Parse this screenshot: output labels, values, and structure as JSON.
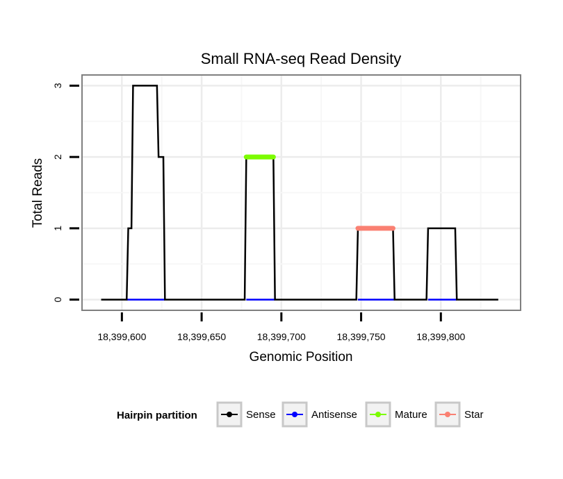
{
  "chart_data": {
    "type": "line",
    "title": "Small RNA-seq Read Density",
    "xlabel": "Genomic Position",
    "ylabel": "Total Reads",
    "xlim": [
      18399575,
      18399850
    ],
    "ylim": [
      -0.15,
      3.15
    ],
    "x_ticks": [
      18399600,
      18399650,
      18399700,
      18399750,
      18399800
    ],
    "x_tick_labels": [
      "18,399,600",
      "18,399,650",
      "18,399,700",
      "18,399,750",
      "18,399,800"
    ],
    "y_ticks": [
      0,
      1,
      2,
      3
    ],
    "y_tick_labels": [
      "0",
      "1",
      "2",
      "3"
    ],
    "grid": true,
    "legend": {
      "title": "Hairpin partition",
      "position": "bottom",
      "entries": [
        {
          "name": "Sense",
          "color": "#000000"
        },
        {
          "name": "Antisense",
          "color": "#0000ff"
        },
        {
          "name": "Mature",
          "color": "#7cfc00"
        },
        {
          "name": "Star",
          "color": "#fa8072"
        }
      ]
    },
    "series": [
      {
        "name": "Sense",
        "color": "#000000",
        "x": [
          18399587,
          18399603,
          18399604,
          18399606,
          18399607,
          18399622,
          18399623,
          18399626,
          18399627,
          18399677,
          18399678,
          18399695,
          18399696,
          18399747,
          18399748,
          18399770,
          18399771,
          18399791,
          18399792,
          18399809,
          18399810,
          18399836
        ],
        "y": [
          0,
          0,
          1,
          1,
          3,
          3,
          2,
          2,
          0,
          0,
          2,
          2,
          0,
          0,
          1,
          1,
          0,
          0,
          1,
          1,
          0,
          0
        ]
      },
      {
        "name": "Antisense",
        "color": "#0000ff",
        "segments": [
          {
            "x": [
              18399603,
              18399627
            ],
            "y": [
              0,
              0
            ]
          },
          {
            "x": [
              18399678,
              18399696
            ],
            "y": [
              0,
              0
            ]
          },
          {
            "x": [
              18399748,
              18399771
            ],
            "y": [
              0,
              0
            ]
          },
          {
            "x": [
              18399792,
              18399810
            ],
            "y": [
              0,
              0
            ]
          }
        ]
      },
      {
        "name": "Mature",
        "color": "#7cfc00",
        "segments": [
          {
            "x": [
              18399678,
              18399695
            ],
            "y": [
              2,
              2
            ]
          }
        ]
      },
      {
        "name": "Star",
        "color": "#fa8072",
        "segments": [
          {
            "x": [
              18399748,
              18399770
            ],
            "y": [
              1,
              1
            ]
          }
        ]
      }
    ]
  }
}
